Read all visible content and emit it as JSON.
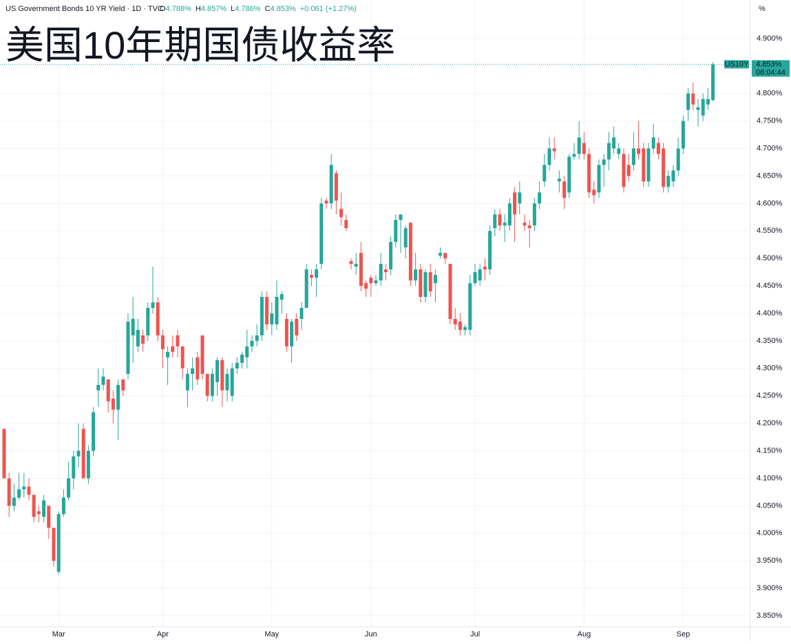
{
  "header": {
    "symbol": "US Government Bonds 10 YR Yield · 1D · TVC",
    "ohlc": [
      {
        "label": "O",
        "value": "4.788%"
      },
      {
        "label": "H",
        "value": "4.857%"
      },
      {
        "label": "L",
        "value": "4.786%"
      },
      {
        "label": "C",
        "value": "4.853%"
      }
    ],
    "change": "+0.061 (+1.27%)",
    "unit": "%",
    "price_tag": {
      "symbol": "US10Y",
      "value": "4.853%",
      "time": "06:04:44"
    }
  },
  "chart_data": {
    "type": "candlestick",
    "title": "美国10年期国债收益率",
    "up_color": "#26a69a",
    "down_color": "#ef5350",
    "title_color": "#f7821b",
    "ylim": [
      3.83,
      4.96
    ],
    "grid": true,
    "yticks": [
      {
        "value": 3.85,
        "label": "3.850%"
      },
      {
        "value": 3.9,
        "label": "3.900%"
      },
      {
        "value": 3.95,
        "label": "3.950%"
      },
      {
        "value": 4.0,
        "label": "4.000%"
      },
      {
        "value": 4.05,
        "label": "4.050%"
      },
      {
        "value": 4.1,
        "label": "4.100%"
      },
      {
        "value": 4.15,
        "label": "4.150%"
      },
      {
        "value": 4.2,
        "label": "4.200%"
      },
      {
        "value": 4.25,
        "label": "4.250%"
      },
      {
        "value": 4.3,
        "label": "4.300%"
      },
      {
        "value": 4.35,
        "label": "4.350%"
      },
      {
        "value": 4.4,
        "label": "4.400%"
      },
      {
        "value": 4.45,
        "label": "4.450%"
      },
      {
        "value": 4.5,
        "label": "4.500%"
      },
      {
        "value": 4.55,
        "label": "4.550%"
      },
      {
        "value": 4.6,
        "label": "4.600%"
      },
      {
        "value": 4.65,
        "label": "4.650%"
      },
      {
        "value": 4.7,
        "label": "4.700%"
      },
      {
        "value": 4.75,
        "label": "4.750%"
      },
      {
        "value": 4.8,
        "label": "4.800%"
      },
      {
        "value": 4.85,
        "label": "4.850%"
      },
      {
        "value": 4.9,
        "label": "4.900%"
      }
    ],
    "categories": [
      null,
      null,
      null,
      null,
      null,
      null,
      null,
      null,
      null,
      null,
      null,
      "Mar",
      null,
      null,
      null,
      null,
      null,
      null,
      null,
      null,
      null,
      null,
      null,
      null,
      null,
      null,
      null,
      null,
      null,
      null,
      null,
      null,
      "Apr",
      null,
      null,
      null,
      null,
      null,
      null,
      null,
      null,
      null,
      null,
      null,
      null,
      null,
      null,
      null,
      null,
      null,
      null,
      null,
      null,
      null,
      "May",
      null,
      null,
      null,
      null,
      null,
      null,
      null,
      null,
      null,
      null,
      null,
      null,
      null,
      null,
      null,
      null,
      null,
      null,
      null,
      "Jun",
      null,
      null,
      null,
      null,
      null,
      null,
      null,
      null,
      null,
      null,
      null,
      null,
      null,
      null,
      null,
      null,
      null,
      null,
      null,
      null,
      "Jul",
      null,
      null,
      null,
      null,
      null,
      null,
      null,
      null,
      null,
      null,
      null,
      null,
      null,
      null,
      null,
      null,
      null,
      null,
      null,
      null,
      null,
      "Aug",
      null,
      null,
      null,
      null,
      null,
      null,
      null,
      null,
      null,
      null,
      null,
      null,
      null,
      null,
      null,
      null,
      null,
      null,
      null,
      "Sep",
      null,
      null,
      null,
      null,
      null,
      null
    ],
    "open": [
      4.19,
      4.1,
      4.05,
      4.065,
      4.08,
      4.085,
      4.07,
      4.04,
      4.03,
      4.05,
      4.01,
      3.93,
      4.035,
      4.065,
      4.1,
      4.14,
      4.19,
      4.1,
      4.15,
      4.26,
      4.27,
      4.28,
      4.245,
      4.225,
      4.28,
      4.29,
      4.36,
      4.34,
      4.36,
      4.36,
      4.41,
      4.42,
      4.36,
      4.32,
      4.34,
      4.36,
      4.34,
      4.26,
      4.29,
      4.32,
      4.36,
      4.29,
      4.25,
      4.275,
      4.315,
      4.26,
      4.25,
      4.3,
      4.31,
      4.32,
      4.34,
      4.35,
      4.36,
      4.43,
      4.38,
      4.38,
      4.425,
      4.39,
      4.34,
      4.39,
      4.39,
      4.41,
      4.47,
      4.465,
      4.49,
      4.605,
      4.6,
      4.655,
      4.59,
      4.57,
      4.495,
      4.485,
      4.51,
      4.455,
      4.465,
      4.455,
      4.46,
      4.48,
      4.48,
      4.53,
      4.57,
      4.52,
      4.565,
      4.46,
      4.48,
      4.43,
      4.475,
      4.455,
      4.505,
      4.51,
      4.49,
      4.39,
      4.385,
      4.37,
      4.37,
      4.455,
      4.46,
      4.485,
      4.48,
      4.555,
      4.58,
      4.56,
      4.56,
      4.62,
      4.6,
      4.565,
      4.56,
      4.56,
      4.6,
      4.64,
      4.67,
      4.7,
      4.64,
      4.64,
      4.62,
      4.685,
      4.69,
      4.71,
      4.69,
      4.625,
      4.62,
      4.67,
      4.68,
      4.7,
      4.69,
      4.69,
      4.67,
      4.67,
      4.7,
      4.7,
      4.64,
      4.7,
      4.71,
      4.7,
      4.63,
      4.64,
      4.66,
      4.7,
      4.77,
      4.8,
      4.77,
      4.76,
      4.78,
      4.788
    ],
    "high": [
      4.19,
      4.11,
      4.09,
      4.11,
      4.11,
      4.1,
      4.07,
      4.05,
      4.07,
      4.05,
      4.01,
      4.04,
      4.08,
      4.13,
      4.15,
      4.2,
      4.2,
      4.16,
      4.23,
      4.3,
      4.3,
      4.28,
      4.26,
      4.28,
      4.28,
      4.4,
      4.43,
      4.39,
      4.37,
      4.42,
      4.485,
      4.43,
      4.37,
      4.34,
      4.36,
      4.37,
      4.34,
      4.3,
      4.32,
      4.33,
      4.36,
      4.29,
      4.3,
      4.32,
      4.32,
      4.3,
      4.31,
      4.32,
      4.33,
      4.37,
      4.36,
      4.38,
      4.44,
      4.44,
      4.42,
      4.46,
      4.44,
      4.4,
      4.39,
      4.4,
      4.42,
      4.49,
      4.48,
      4.49,
      4.61,
      4.61,
      4.69,
      4.66,
      4.62,
      4.58,
      4.5,
      4.51,
      4.53,
      4.46,
      4.47,
      4.47,
      4.51,
      4.49,
      4.54,
      4.58,
      4.58,
      4.56,
      4.565,
      4.51,
      4.49,
      4.48,
      4.49,
      4.48,
      4.52,
      4.51,
      4.49,
      4.41,
      4.4,
      4.38,
      4.47,
      4.49,
      4.49,
      4.5,
      4.56,
      4.59,
      4.59,
      4.58,
      4.61,
      4.63,
      4.64,
      4.58,
      4.57,
      4.61,
      4.64,
      4.69,
      4.72,
      4.72,
      4.66,
      4.65,
      4.69,
      4.71,
      4.75,
      4.73,
      4.7,
      4.64,
      4.68,
      4.69,
      4.73,
      4.74,
      4.71,
      4.7,
      4.69,
      4.73,
      4.75,
      4.71,
      4.71,
      4.745,
      4.72,
      4.71,
      4.66,
      4.67,
      4.72,
      4.76,
      4.81,
      4.82,
      4.79,
      4.8,
      4.81,
      4.857
    ],
    "low": [
      4.1,
      4.03,
      4.04,
      4.06,
      4.065,
      4.06,
      4.02,
      4.02,
      4.02,
      3.99,
      3.94,
      3.925,
      4.03,
      4.06,
      4.08,
      4.12,
      4.1,
      4.09,
      4.14,
      4.23,
      4.26,
      4.22,
      4.2,
      4.17,
      4.25,
      4.28,
      4.31,
      4.33,
      4.33,
      4.35,
      4.4,
      4.35,
      4.3,
      4.27,
      4.32,
      4.32,
      4.28,
      4.23,
      4.26,
      4.27,
      4.28,
      4.24,
      4.24,
      4.25,
      4.23,
      4.24,
      4.24,
      4.29,
      4.3,
      4.3,
      4.33,
      4.34,
      4.35,
      4.37,
      4.36,
      4.37,
      4.4,
      4.33,
      4.31,
      4.35,
      4.37,
      4.41,
      4.45,
      4.43,
      4.48,
      4.59,
      4.59,
      4.58,
      4.56,
      4.55,
      4.48,
      4.47,
      4.44,
      4.43,
      4.43,
      4.45,
      4.45,
      4.46,
      4.47,
      4.52,
      4.51,
      4.5,
      4.45,
      4.45,
      4.42,
      4.42,
      4.43,
      4.42,
      4.5,
      4.49,
      4.38,
      4.37,
      4.36,
      4.36,
      4.36,
      4.45,
      4.45,
      4.46,
      4.47,
      4.54,
      4.55,
      4.53,
      4.55,
      4.53,
      4.58,
      4.55,
      4.52,
      4.55,
      4.59,
      4.63,
      4.66,
      4.68,
      4.62,
      4.59,
      4.61,
      4.68,
      4.68,
      4.68,
      4.61,
      4.6,
      4.61,
      4.63,
      4.66,
      4.69,
      4.68,
      4.62,
      4.64,
      4.66,
      4.68,
      4.63,
      4.63,
      4.69,
      4.68,
      4.62,
      4.62,
      4.63,
      4.65,
      4.69,
      4.75,
      4.77,
      4.74,
      4.75,
      4.77,
      4.786
    ],
    "close": [
      4.1,
      4.05,
      4.065,
      4.08,
      4.085,
      4.07,
      4.03,
      4.035,
      4.06,
      4.01,
      3.95,
      4.035,
      4.065,
      4.1,
      4.14,
      4.15,
      4.1,
      4.15,
      4.22,
      4.27,
      4.285,
      4.24,
      4.225,
      4.27,
      4.26,
      4.385,
      4.39,
      4.37,
      4.345,
      4.41,
      4.42,
      4.36,
      4.335,
      4.33,
      4.33,
      4.34,
      4.3,
      4.29,
      4.3,
      4.28,
      4.29,
      4.25,
      4.29,
      4.315,
      4.26,
      4.29,
      4.3,
      4.31,
      4.325,
      4.34,
      4.35,
      4.36,
      4.43,
      4.38,
      4.4,
      4.43,
      4.435,
      4.34,
      4.385,
      4.36,
      4.41,
      4.48,
      4.465,
      4.48,
      4.6,
      4.6,
      4.67,
      4.605,
      4.575,
      4.555,
      4.49,
      4.49,
      4.45,
      4.445,
      4.455,
      4.46,
      4.49,
      4.475,
      4.53,
      4.57,
      4.58,
      4.555,
      4.46,
      4.48,
      4.43,
      4.475,
      4.44,
      4.47,
      4.51,
      4.5,
      4.39,
      4.38,
      4.37,
      4.375,
      4.455,
      4.475,
      4.48,
      4.48,
      4.55,
      4.58,
      4.56,
      4.565,
      4.6,
      4.58,
      4.62,
      4.56,
      4.555,
      4.6,
      4.62,
      4.67,
      4.7,
      4.695,
      4.645,
      4.61,
      4.685,
      4.69,
      4.72,
      4.69,
      4.62,
      4.615,
      4.67,
      4.68,
      4.71,
      4.72,
      4.7,
      4.63,
      4.65,
      4.7,
      4.69,
      4.64,
      4.7,
      4.72,
      4.69,
      4.63,
      4.65,
      4.66,
      4.7,
      4.75,
      4.8,
      4.78,
      4.775,
      4.79,
      4.79,
      4.853
    ]
  }
}
